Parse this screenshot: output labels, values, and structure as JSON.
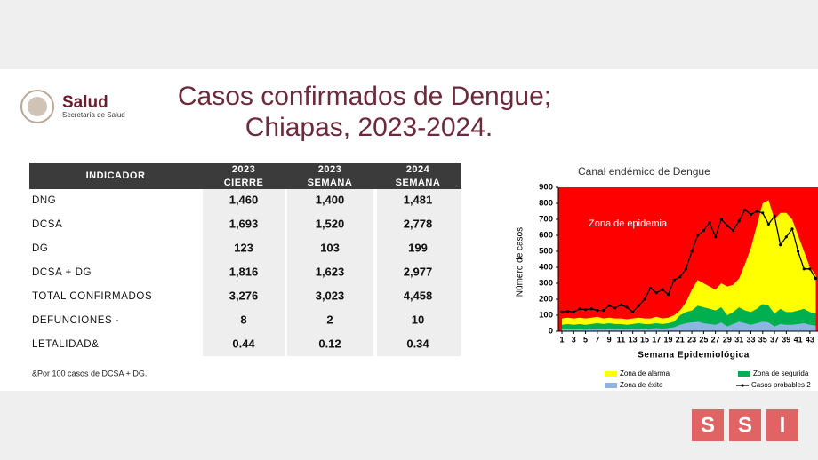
{
  "header": {
    "logo_title": "Salud",
    "logo_subtitle": "Secretaría de Salud",
    "title_lines": [
      "Casos confirmados de Dengue;",
      "Chiapas, 2023-2024."
    ]
  },
  "table": {
    "columns": [
      [
        "INDICADOR"
      ],
      [
        "2023",
        "CIERRE"
      ],
      [
        "2023",
        "SEMANA"
      ],
      [
        "2024",
        "SEMANA"
      ]
    ],
    "rows": [
      [
        "DNG",
        "1,460",
        "1,400",
        "1,481"
      ],
      [
        "DCSA",
        "1,693",
        "1,520",
        "2,778"
      ],
      [
        "DG",
        "123",
        "103",
        "199"
      ],
      [
        "DCSA + DG",
        "1,816",
        "1,623",
        "2,977"
      ],
      [
        "TOTAL CONFIRMADOS",
        "3,276",
        "3,023",
        "4,458"
      ],
      [
        "DEFUNCIONES ·",
        "8",
        "2",
        "10"
      ],
      [
        "LETALIDAD&",
        "0.44",
        "0.12",
        "0.34"
      ]
    ],
    "footnote": "&Por 100 casos de DCSA + DG."
  },
  "chart_data": {
    "type": "area",
    "title": "Canal endémico de Dengue",
    "x_label": "Semana Epidemiológica",
    "y_label": "Número de casos",
    "annotation": "Zona de epidemia",
    "epidemic_color": "#ff0000",
    "x": [
      1,
      2,
      3,
      4,
      5,
      6,
      7,
      8,
      9,
      10,
      11,
      12,
      13,
      14,
      15,
      16,
      17,
      18,
      19,
      20,
      21,
      22,
      23,
      24,
      25,
      26,
      27,
      28,
      29,
      30,
      31,
      32,
      33,
      34,
      35,
      36,
      37,
      38,
      39,
      40,
      41,
      42,
      43,
      44
    ],
    "xticks": [
      1,
      3,
      5,
      7,
      9,
      11,
      13,
      15,
      17,
      19,
      21,
      23,
      25,
      27,
      29,
      31,
      33,
      35,
      37,
      39,
      41,
      43
    ],
    "ylim": [
      0,
      900
    ],
    "yticks": [
      0,
      100,
      200,
      300,
      400,
      500,
      600,
      700,
      800,
      900
    ],
    "series": [
      {
        "name": "Zona de alarma",
        "color": "#ffff00",
        "kind": "area",
        "values": [
          80,
          85,
          80,
          85,
          80,
          85,
          90,
          80,
          85,
          80,
          80,
          75,
          80,
          85,
          80,
          80,
          90,
          80,
          85,
          100,
          130,
          180,
          260,
          320,
          300,
          280,
          260,
          300,
          280,
          290,
          330,
          420,
          520,
          660,
          800,
          820,
          700,
          740,
          740,
          700,
          600,
          500,
          400,
          350
        ]
      },
      {
        "name": "Zona de segurida",
        "color": "#00b050",
        "kind": "area",
        "values": [
          40,
          45,
          40,
          45,
          40,
          45,
          50,
          45,
          50,
          45,
          45,
          40,
          45,
          50,
          45,
          45,
          50,
          45,
          50,
          60,
          100,
          120,
          130,
          160,
          150,
          140,
          130,
          150,
          100,
          120,
          150,
          130,
          120,
          140,
          170,
          160,
          110,
          140,
          120,
          120,
          130,
          140,
          120,
          110
        ]
      },
      {
        "name": "Zona de éxito",
        "color": "#8db4e2",
        "kind": "area",
        "values": [
          10,
          12,
          10,
          12,
          10,
          15,
          15,
          12,
          15,
          12,
          15,
          12,
          15,
          15,
          12,
          15,
          20,
          15,
          20,
          25,
          40,
          50,
          55,
          60,
          50,
          45,
          40,
          55,
          30,
          45,
          60,
          50,
          40,
          50,
          60,
          55,
          30,
          45,
          40,
          40,
          45,
          50,
          40,
          35
        ]
      },
      {
        "name": "Casos probables 2",
        "color": "#000000",
        "kind": "line",
        "values": [
          120,
          125,
          120,
          140,
          135,
          140,
          130,
          130,
          160,
          145,
          165,
          150,
          120,
          160,
          200,
          270,
          240,
          260,
          230,
          320,
          340,
          390,
          500,
          600,
          630,
          680,
          590,
          700,
          660,
          630,
          690,
          760,
          730,
          750,
          740,
          670,
          720,
          540,
          590,
          640,
          500,
          390,
          390,
          330
        ]
      }
    ]
  },
  "brand": [
    "S",
    "S",
    "I"
  ]
}
